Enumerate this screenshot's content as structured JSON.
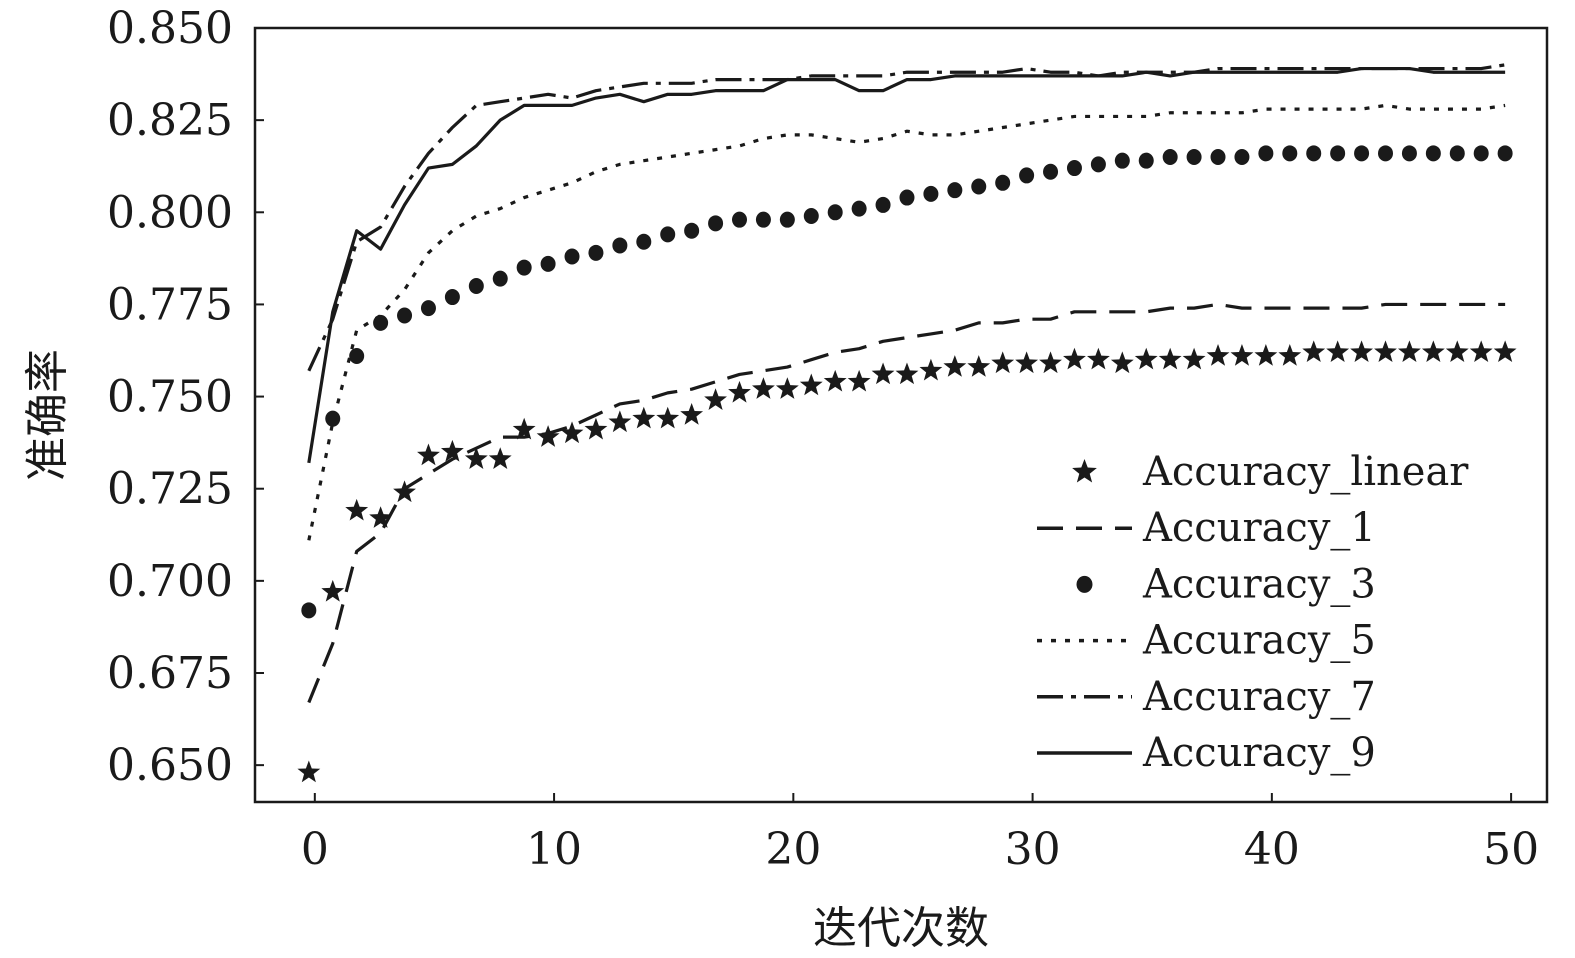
{
  "chart_data": {
    "type": "line",
    "title": "",
    "xlabel": "迭代次数",
    "ylabel": "准确率",
    "xlim": [
      -2.5,
      51.5
    ],
    "ylim": [
      0.64,
      0.85
    ],
    "xticks": [
      0,
      10,
      20,
      30,
      40,
      50
    ],
    "xtick_labels": [
      "0",
      "10",
      "20",
      "30",
      "40",
      "50"
    ],
    "yticks": [
      0.65,
      0.675,
      0.7,
      0.725,
      0.75,
      0.775,
      0.8,
      0.825,
      0.85
    ],
    "ytick_labels": [
      "0.650",
      "0.675",
      "0.700",
      "0.725",
      "0.750",
      "0.775",
      "0.800",
      "0.825",
      "0.850"
    ],
    "grid": false,
    "legend_position": "lower-right",
    "x": [
      0,
      1,
      2,
      3,
      4,
      5,
      6,
      7,
      8,
      9,
      10,
      11,
      12,
      13,
      14,
      15,
      16,
      17,
      18,
      19,
      20,
      21,
      22,
      23,
      24,
      25,
      26,
      27,
      28,
      29,
      30,
      31,
      32,
      33,
      34,
      35,
      36,
      37,
      38,
      39,
      40,
      41,
      42,
      43,
      44,
      45,
      46,
      47,
      48,
      49,
      50
    ],
    "series": [
      {
        "name": "Accuracy_linear",
        "style": "star-marker",
        "color": "#1a1a1a",
        "values": [
          0.648,
          0.697,
          0.719,
          0.717,
          0.724,
          0.734,
          0.735,
          0.733,
          0.733,
          0.741,
          0.739,
          0.74,
          0.741,
          0.743,
          0.744,
          0.744,
          0.745,
          0.749,
          0.751,
          0.752,
          0.752,
          0.753,
          0.754,
          0.754,
          0.756,
          0.756,
          0.757,
          0.758,
          0.758,
          0.759,
          0.759,
          0.759,
          0.76,
          0.76,
          0.759,
          0.76,
          0.76,
          0.76,
          0.761,
          0.761,
          0.761,
          0.761,
          0.762,
          0.762,
          0.762,
          0.762,
          0.762,
          0.762,
          0.762,
          0.762,
          0.762
        ]
      },
      {
        "name": "Accuracy_1",
        "style": "dashed",
        "color": "#1a1a1a",
        "values": [
          0.667,
          0.683,
          0.708,
          0.713,
          0.725,
          0.729,
          0.733,
          0.736,
          0.739,
          0.739,
          0.74,
          0.742,
          0.745,
          0.748,
          0.749,
          0.751,
          0.752,
          0.754,
          0.756,
          0.757,
          0.758,
          0.76,
          0.762,
          0.763,
          0.765,
          0.766,
          0.767,
          0.768,
          0.77,
          0.77,
          0.771,
          0.771,
          0.773,
          0.773,
          0.773,
          0.773,
          0.774,
          0.774,
          0.775,
          0.774,
          0.774,
          0.774,
          0.774,
          0.774,
          0.774,
          0.775,
          0.775,
          0.775,
          0.775,
          0.775,
          0.775
        ]
      },
      {
        "name": "Accuracy_3",
        "style": "dot-marker",
        "color": "#1a1a1a",
        "values": [
          0.692,
          0.744,
          0.761,
          0.77,
          0.772,
          0.774,
          0.777,
          0.78,
          0.782,
          0.785,
          0.786,
          0.788,
          0.789,
          0.791,
          0.792,
          0.794,
          0.795,
          0.797,
          0.798,
          0.798,
          0.798,
          0.799,
          0.8,
          0.801,
          0.802,
          0.804,
          0.805,
          0.806,
          0.807,
          0.808,
          0.81,
          0.811,
          0.812,
          0.813,
          0.814,
          0.814,
          0.815,
          0.815,
          0.815,
          0.815,
          0.816,
          0.816,
          0.816,
          0.816,
          0.816,
          0.816,
          0.816,
          0.816,
          0.816,
          0.816,
          0.816
        ]
      },
      {
        "name": "Accuracy_5",
        "style": "dotted",
        "color": "#1a1a1a",
        "values": [
          0.711,
          0.743,
          0.768,
          0.772,
          0.779,
          0.789,
          0.795,
          0.799,
          0.801,
          0.804,
          0.806,
          0.808,
          0.811,
          0.813,
          0.814,
          0.815,
          0.816,
          0.817,
          0.818,
          0.82,
          0.821,
          0.821,
          0.82,
          0.819,
          0.82,
          0.822,
          0.821,
          0.821,
          0.822,
          0.823,
          0.824,
          0.825,
          0.826,
          0.826,
          0.826,
          0.826,
          0.827,
          0.827,
          0.827,
          0.827,
          0.828,
          0.828,
          0.828,
          0.828,
          0.828,
          0.829,
          0.828,
          0.828,
          0.828,
          0.828,
          0.829
        ]
      },
      {
        "name": "Accuracy_7",
        "style": "dash-dot",
        "color": "#1a1a1a",
        "values": [
          0.757,
          0.771,
          0.792,
          0.796,
          0.807,
          0.816,
          0.823,
          0.829,
          0.83,
          0.831,
          0.832,
          0.831,
          0.833,
          0.834,
          0.835,
          0.835,
          0.835,
          0.836,
          0.836,
          0.836,
          0.836,
          0.837,
          0.837,
          0.837,
          0.837,
          0.838,
          0.838,
          0.838,
          0.838,
          0.838,
          0.839,
          0.838,
          0.838,
          0.837,
          0.838,
          0.838,
          0.838,
          0.838,
          0.839,
          0.839,
          0.839,
          0.839,
          0.839,
          0.839,
          0.839,
          0.839,
          0.839,
          0.839,
          0.839,
          0.839,
          0.84
        ]
      },
      {
        "name": "Accuracy_9",
        "style": "solid",
        "color": "#1a1a1a",
        "values": [
          0.732,
          0.773,
          0.795,
          0.79,
          0.802,
          0.812,
          0.813,
          0.818,
          0.825,
          0.829,
          0.829,
          0.829,
          0.831,
          0.832,
          0.83,
          0.832,
          0.832,
          0.833,
          0.833,
          0.833,
          0.836,
          0.836,
          0.836,
          0.833,
          0.833,
          0.836,
          0.836,
          0.837,
          0.837,
          0.837,
          0.837,
          0.837,
          0.837,
          0.837,
          0.837,
          0.838,
          0.837,
          0.838,
          0.838,
          0.838,
          0.838,
          0.838,
          0.838,
          0.838,
          0.839,
          0.839,
          0.839,
          0.838,
          0.838,
          0.838,
          0.838
        ]
      }
    ]
  }
}
